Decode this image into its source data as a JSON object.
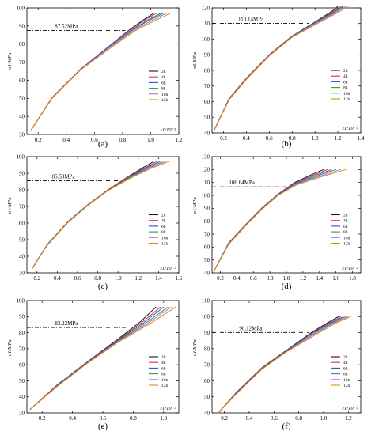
{
  "colors": {
    "2h": "#1a1a1a",
    "4h": "#e0303a",
    "6h": "#2d4fd6",
    "8h": "#2a9a4c",
    "10h": "#b46fd6",
    "12h": "#e08a12",
    "threshold_line": "#000000"
  },
  "chart_data": [
    {
      "type": "line",
      "caption": "(a)",
      "ylabel": "σ1/MPa",
      "xlabel": "ε1/10⁻²",
      "xlim": [
        0.12,
        1.2
      ],
      "ylim": [
        30,
        100
      ],
      "xticks": [
        "0.2",
        "0.4",
        "0.6",
        "0.8",
        "1.0",
        "1.2"
      ],
      "yticks": [
        "30",
        "40",
        "50",
        "60",
        "70",
        "80",
        "90",
        "100"
      ],
      "threshold": {
        "value": 87.52,
        "label": "87.52MPa",
        "x_end": 0.82
      },
      "legend": [
        "2h",
        "4h",
        "6h",
        "8h",
        "10h",
        "12h"
      ],
      "series": [
        {
          "name": "2h",
          "x": [
            0.15,
            0.3,
            0.5,
            0.7,
            0.85,
            0.95,
            1.02
          ],
          "y": [
            32.5,
            50.5,
            66,
            78.5,
            88,
            93.5,
            97
          ]
        },
        {
          "name": "4h",
          "x": [
            0.15,
            0.3,
            0.5,
            0.7,
            0.85,
            0.96,
            1.04
          ],
          "y": [
            32.5,
            50.5,
            66,
            78.5,
            87.8,
            93.4,
            97
          ]
        },
        {
          "name": "6h",
          "x": [
            0.15,
            0.3,
            0.5,
            0.7,
            0.86,
            0.98,
            1.07
          ],
          "y": [
            32.5,
            50.4,
            65.9,
            78.4,
            87.7,
            93.3,
            97
          ]
        },
        {
          "name": "8h",
          "x": [
            0.15,
            0.3,
            0.5,
            0.71,
            0.87,
            0.99,
            1.09
          ],
          "y": [
            32.5,
            50.3,
            65.8,
            78.4,
            87.6,
            93.2,
            97
          ]
        },
        {
          "name": "10h",
          "x": [
            0.15,
            0.3,
            0.5,
            0.71,
            0.88,
            1.01,
            1.11
          ],
          "y": [
            32.5,
            50.2,
            65.7,
            78.3,
            87.5,
            93.1,
            97
          ]
        },
        {
          "name": "12h",
          "x": [
            0.15,
            0.3,
            0.5,
            0.72,
            0.89,
            1.03,
            1.14
          ],
          "y": [
            32.5,
            50.1,
            65.6,
            78.2,
            87.4,
            93,
            97
          ]
        }
      ]
    },
    {
      "type": "line",
      "caption": "(b)",
      "ylabel": "σ1/MPa",
      "xlabel": "ε1/10⁻²",
      "xlim": [
        0.1,
        1.4
      ],
      "ylim": [
        40,
        120
      ],
      "xticks": [
        "0.2",
        "0.4",
        "0.6",
        "0.8",
        "1.0",
        "1.2",
        "1.4"
      ],
      "yticks": [
        "40",
        "50",
        "60",
        "70",
        "80",
        "90",
        "100",
        "110",
        "120"
      ],
      "threshold": {
        "value": 110.14,
        "label": "110.14MPa",
        "x_end": 0.95
      },
      "legend": [
        "2h",
        "4h",
        "6h",
        "8h",
        "10h",
        "12h"
      ],
      "series": [
        {
          "name": "2h",
          "x": [
            0.12,
            0.25,
            0.4,
            0.6,
            0.8,
            1.0,
            1.15,
            1.2
          ],
          "y": [
            42,
            62,
            75,
            90,
            102,
            111,
            118,
            121
          ]
        },
        {
          "name": "4h",
          "x": [
            0.12,
            0.25,
            0.4,
            0.6,
            0.8,
            1.0,
            1.16,
            1.22
          ],
          "y": [
            42,
            62,
            75,
            90,
            102,
            110.8,
            117.8,
            121
          ]
        },
        {
          "name": "6h",
          "x": [
            0.12,
            0.25,
            0.4,
            0.6,
            0.8,
            1.0,
            1.17,
            1.24
          ],
          "y": [
            42,
            61.8,
            74.8,
            89.8,
            101.8,
            110.6,
            117.6,
            121
          ]
        },
        {
          "name": "8h",
          "x": [
            0.12,
            0.25,
            0.4,
            0.6,
            0.8,
            1.01,
            1.18,
            1.25
          ],
          "y": [
            42,
            61.6,
            74.6,
            89.6,
            101.6,
            110.4,
            117.4,
            121
          ]
        },
        {
          "name": "10h",
          "x": [
            0.12,
            0.25,
            0.4,
            0.6,
            0.8,
            1.01,
            1.19,
            1.27
          ],
          "y": [
            42,
            61.4,
            74.4,
            89.4,
            101.4,
            110.2,
            117.2,
            121
          ]
        },
        {
          "name": "12h",
          "x": [
            0.12,
            0.25,
            0.4,
            0.6,
            0.8,
            1.02,
            1.2,
            1.29
          ],
          "y": [
            42,
            61.2,
            74.2,
            89.2,
            101.2,
            110,
            117,
            121
          ]
        }
      ]
    },
    {
      "type": "line",
      "caption": "(c)",
      "ylabel": "σ1/MPa",
      "xlabel": "ε1/10⁻²",
      "xlim": [
        0.1,
        1.6
      ],
      "ylim": [
        30,
        100
      ],
      "xticks": [
        "0.2",
        "0.4",
        "0.6",
        "0.8",
        "1.0",
        "1.2",
        "1.4",
        "1.6"
      ],
      "yticks": [
        "30",
        "40",
        "50",
        "60",
        "70",
        "80",
        "90",
        "100"
      ],
      "threshold": {
        "value": 85.53,
        "label": "85.53MPa",
        "x_end": 1.0
      },
      "legend": [
        "2h",
        "4h",
        "6h",
        "8h",
        "10h",
        "12h"
      ],
      "series": [
        {
          "name": "2h",
          "x": [
            0.15,
            0.3,
            0.5,
            0.7,
            0.9,
            1.1,
            1.25,
            1.35
          ],
          "y": [
            32.5,
            47,
            60.5,
            71,
            80,
            88,
            93.5,
            97
          ]
        },
        {
          "name": "4h",
          "x": [
            0.15,
            0.3,
            0.5,
            0.7,
            0.9,
            1.1,
            1.27,
            1.38
          ],
          "y": [
            32.5,
            46.9,
            60.4,
            70.9,
            79.9,
            87.8,
            93.4,
            97
          ]
        },
        {
          "name": "6h",
          "x": [
            0.15,
            0.3,
            0.5,
            0.7,
            0.9,
            1.11,
            1.28,
            1.41
          ],
          "y": [
            32.5,
            46.8,
            60.3,
            70.8,
            79.8,
            87.6,
            93.3,
            97
          ]
        },
        {
          "name": "8h",
          "x": [
            0.15,
            0.3,
            0.5,
            0.7,
            0.9,
            1.11,
            1.3,
            1.44
          ],
          "y": [
            32.5,
            46.7,
            60.2,
            70.7,
            79.7,
            87.4,
            93.2,
            97
          ]
        },
        {
          "name": "10h",
          "x": [
            0.15,
            0.3,
            0.5,
            0.7,
            0.9,
            1.12,
            1.31,
            1.47
          ],
          "y": [
            32.5,
            46.6,
            60.1,
            70.6,
            79.6,
            87.2,
            93.1,
            97
          ]
        },
        {
          "name": "12h",
          "x": [
            0.15,
            0.3,
            0.5,
            0.7,
            0.9,
            1.12,
            1.33,
            1.5
          ],
          "y": [
            32.5,
            46.5,
            60,
            70.5,
            79.5,
            87,
            93,
            97
          ]
        }
      ]
    },
    {
      "type": "line",
      "caption": "(d)",
      "ylabel": "σ1/MPa",
      "xlabel": "ε1/10⁻²",
      "xlim": [
        0.1,
        1.9
      ],
      "ylim": [
        40,
        130
      ],
      "xticks": [
        "0.2",
        "0.4",
        "0.6",
        "0.8",
        "1.0",
        "1.2",
        "1.4",
        "1.6",
        "1.8"
      ],
      "yticks": [
        "40",
        "50",
        "60",
        "70",
        "80",
        "90",
        "100",
        "110",
        "120",
        "130"
      ],
      "threshold": {
        "value": 106.64,
        "label": "106.64MPa",
        "x_end": 1.0
      },
      "legend": [
        "2h",
        "4h",
        "6h",
        "8h",
        "10h",
        "12h"
      ],
      "series": [
        {
          "name": "2h",
          "x": [
            0.12,
            0.3,
            0.5,
            0.7,
            0.9,
            1.1,
            1.3,
            1.45
          ],
          "y": [
            41,
            63,
            77,
            90,
            101,
            110,
            116,
            120
          ]
        },
        {
          "name": "4h",
          "x": [
            0.12,
            0.3,
            0.5,
            0.7,
            0.9,
            1.1,
            1.32,
            1.5
          ],
          "y": [
            41,
            62.8,
            76.8,
            89.8,
            100.8,
            109.6,
            115.6,
            120
          ]
        },
        {
          "name": "6h",
          "x": [
            0.12,
            0.3,
            0.5,
            0.7,
            0.9,
            1.1,
            1.34,
            1.55
          ],
          "y": [
            41,
            62.6,
            76.6,
            89.6,
            100.6,
            109.2,
            115.2,
            120
          ]
        },
        {
          "name": "8h",
          "x": [
            0.12,
            0.3,
            0.5,
            0.7,
            0.9,
            1.11,
            1.36,
            1.6
          ],
          "y": [
            41,
            62.4,
            76.4,
            89.4,
            100.4,
            108.8,
            114.8,
            120
          ]
        },
        {
          "name": "10h",
          "x": [
            0.12,
            0.3,
            0.5,
            0.7,
            0.9,
            1.11,
            1.38,
            1.66
          ],
          "y": [
            41,
            62.2,
            76.2,
            89.2,
            100.2,
            108.4,
            114.4,
            120
          ]
        },
        {
          "name": "12h",
          "x": [
            0.12,
            0.3,
            0.5,
            0.7,
            0.9,
            1.12,
            1.4,
            1.72
          ],
          "y": [
            41,
            62,
            76,
            89,
            100,
            108,
            114,
            120
          ]
        }
      ]
    },
    {
      "type": "line",
      "caption": "(e)",
      "ylabel": "σ1/MPa",
      "xlabel": "ε1/10⁻²",
      "xlim": [
        0.1,
        1.1
      ],
      "ylim": [
        30,
        100
      ],
      "xticks": [
        "0.2",
        "0.4",
        "0.6",
        "0.8",
        "1.0"
      ],
      "yticks": [
        "30",
        "40",
        "50",
        "60",
        "70",
        "80",
        "90",
        "100"
      ],
      "threshold": {
        "value": 83.22,
        "label": "83.22MPa",
        "x_end": 0.75
      },
      "legend": [
        "2h",
        "4h",
        "6h",
        "8h",
        "10h",
        "12h"
      ],
      "series": [
        {
          "name": "2h",
          "x": [
            0.12,
            0.3,
            0.5,
            0.7,
            0.85,
            0.95
          ],
          "y": [
            32,
            47.5,
            62,
            76,
            87,
            96
          ]
        },
        {
          "name": "4h",
          "x": [
            0.12,
            0.3,
            0.5,
            0.7,
            0.86,
            0.98
          ],
          "y": [
            32,
            47.3,
            61.8,
            75.6,
            86.6,
            96
          ]
        },
        {
          "name": "6h",
          "x": [
            0.12,
            0.3,
            0.5,
            0.7,
            0.87,
            1.0
          ],
          "y": [
            32,
            47.1,
            61.6,
            75.2,
            86.2,
            96
          ]
        },
        {
          "name": "8h",
          "x": [
            0.12,
            0.3,
            0.5,
            0.7,
            0.88,
            1.03
          ],
          "y": [
            32,
            46.9,
            61.4,
            74.8,
            85.8,
            96
          ]
        },
        {
          "name": "10h",
          "x": [
            0.12,
            0.3,
            0.5,
            0.7,
            0.89,
            1.05
          ],
          "y": [
            32,
            46.7,
            61.2,
            74.4,
            85.4,
            96
          ]
        },
        {
          "name": "12h",
          "x": [
            0.12,
            0.3,
            0.5,
            0.7,
            0.9,
            1.08
          ],
          "y": [
            32,
            46.5,
            61,
            74,
            85,
            96
          ]
        }
      ]
    },
    {
      "type": "line",
      "caption": "(f)",
      "ylabel": "σ1/MPa",
      "xlabel": "ε1/10⁻²",
      "xlim": [
        0.1,
        1.3
      ],
      "ylim": [
        40,
        110
      ],
      "xticks": [
        "0.2",
        "0.4",
        "0.6",
        "0.8",
        "1.0",
        "1.2"
      ],
      "yticks": [
        "40",
        "50",
        "60",
        "70",
        "80",
        "90",
        "100",
        "110"
      ],
      "threshold": {
        "value": 90.12,
        "label": "90.12MPa",
        "x_end": 0.88
      },
      "legend": [
        "2h",
        "4h",
        "6h",
        "8h",
        "10h",
        "12h"
      ],
      "series": [
        {
          "name": "2h",
          "x": [
            0.15,
            0.3,
            0.5,
            0.7,
            0.9,
            1.05,
            1.12
          ],
          "y": [
            40,
            53,
            68,
            79,
            90,
            97,
            100
          ]
        },
        {
          "name": "4h",
          "x": [
            0.15,
            0.3,
            0.5,
            0.7,
            0.9,
            1.06,
            1.14
          ],
          "y": [
            40,
            52.8,
            67.8,
            78.8,
            89.6,
            96.8,
            100
          ]
        },
        {
          "name": "6h",
          "x": [
            0.15,
            0.3,
            0.5,
            0.7,
            0.9,
            1.07,
            1.16
          ],
          "y": [
            40,
            52.6,
            67.6,
            78.6,
            89.2,
            96.6,
            100
          ]
        },
        {
          "name": "8h",
          "x": [
            0.15,
            0.3,
            0.5,
            0.7,
            0.91,
            1.08,
            1.18
          ],
          "y": [
            40,
            52.4,
            67.4,
            78.4,
            88.8,
            96.4,
            100
          ]
        },
        {
          "name": "10h",
          "x": [
            0.15,
            0.3,
            0.5,
            0.7,
            0.91,
            1.09,
            1.2
          ],
          "y": [
            40,
            52.2,
            67.2,
            78.2,
            88.4,
            96.2,
            100
          ]
        },
        {
          "name": "12h",
          "x": [
            0.15,
            0.3,
            0.5,
            0.7,
            0.92,
            1.1,
            1.22
          ],
          "y": [
            40,
            52,
            67,
            78,
            88,
            96,
            100
          ]
        }
      ]
    }
  ]
}
